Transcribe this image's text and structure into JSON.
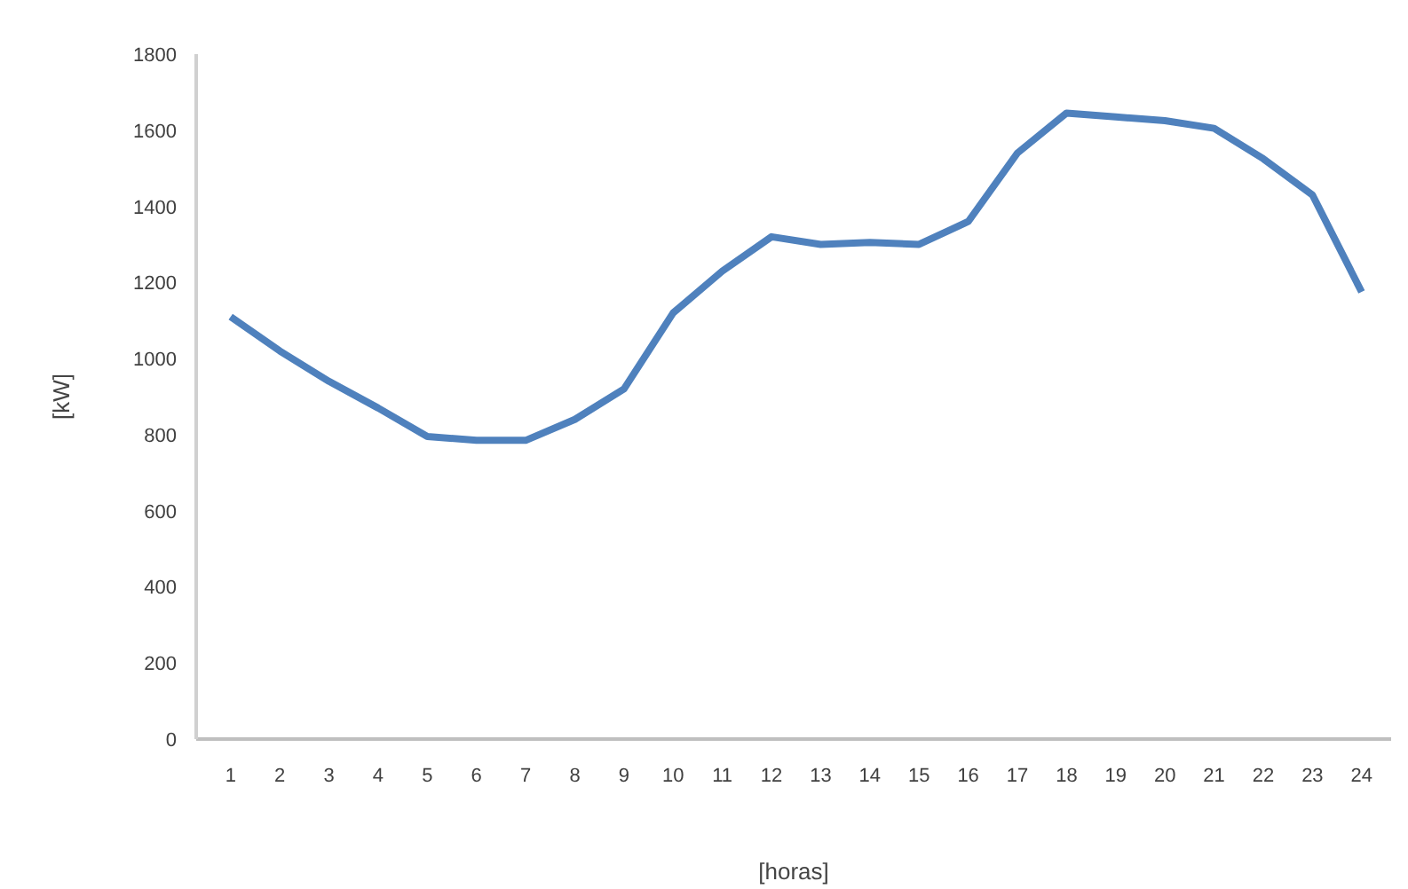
{
  "chart_data": {
    "type": "line",
    "xlabel": "[horas]",
    "ylabel": "[kW]",
    "x": [
      1,
      2,
      3,
      4,
      5,
      6,
      7,
      8,
      9,
      10,
      11,
      12,
      13,
      14,
      15,
      16,
      17,
      18,
      19,
      20,
      21,
      22,
      23,
      24
    ],
    "series": [
      {
        "color": "#4f81bd",
        "values": [
          1110,
          1020,
          940,
          870,
          795,
          785,
          785,
          840,
          920,
          1120,
          1230,
          1320,
          1300,
          1305,
          1300,
          1360,
          1540,
          1645,
          1635,
          1625,
          1605,
          1525,
          1430,
          1175
        ]
      }
    ],
    "xlim": [
      0.3,
      24.6
    ],
    "xticks": [
      1,
      2,
      3,
      4,
      5,
      6,
      7,
      8,
      9,
      10,
      11,
      12,
      13,
      14,
      15,
      16,
      17,
      18,
      19,
      20,
      21,
      22,
      23,
      24
    ],
    "ylim": [
      0,
      1800
    ],
    "yticks": [
      0,
      200,
      400,
      600,
      800,
      1000,
      1200,
      1400,
      1600,
      1800
    ],
    "grid": false
  }
}
